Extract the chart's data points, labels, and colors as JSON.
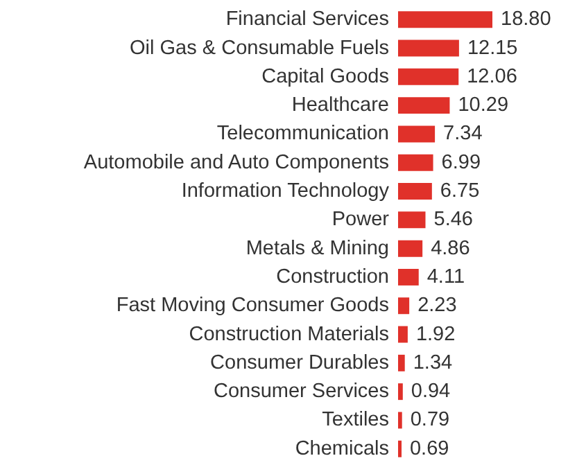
{
  "chart_data": {
    "type": "bar",
    "orientation": "horizontal",
    "color": "#e0312a",
    "categories": [
      "Financial Services",
      "Oil Gas & Consumable Fuels",
      "Capital Goods",
      "Healthcare",
      "Telecommunication",
      "Automobile and Auto Components",
      "Information Technology",
      "Power",
      "Metals & Mining",
      "Construction",
      "Fast Moving Consumer Goods",
      "Construction Materials",
      "Consumer Durables",
      "Consumer Services",
      "Textiles",
      "Chemicals"
    ],
    "values": [
      18.8,
      12.15,
      12.06,
      10.29,
      7.34,
      6.99,
      6.75,
      5.46,
      4.86,
      4.11,
      2.23,
      1.92,
      1.34,
      0.94,
      0.79,
      0.69
    ],
    "value_labels": [
      "18.80",
      "12.15",
      "12.06",
      "10.29",
      "7.34",
      "6.99",
      "6.75",
      "5.46",
      "4.86",
      "4.11",
      "2.23",
      "1.92",
      "1.34",
      "0.94",
      "0.79",
      "0.69"
    ]
  }
}
